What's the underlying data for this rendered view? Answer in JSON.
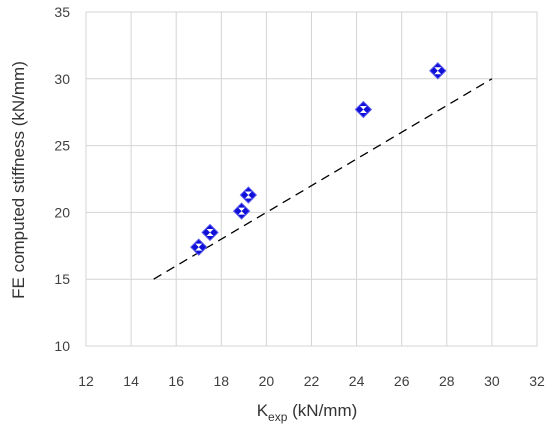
{
  "chart_data": {
    "type": "scatter",
    "title": "",
    "xlabel": {
      "base": "K",
      "subscript": "exp",
      "suffix": " (kN/mm)"
    },
    "ylabel": "FE computed stiffness (kN/mm)",
    "xlim": [
      12,
      32
    ],
    "ylim": [
      10,
      35
    ],
    "xticks": [
      "12",
      "14",
      "16",
      "18",
      "20",
      "22",
      "24",
      "26",
      "28",
      "30",
      "32"
    ],
    "yticks": [
      "10",
      "15",
      "20",
      "25",
      "30",
      "35"
    ],
    "grid": true,
    "legend": "none",
    "points": [
      {
        "x": 17.0,
        "y": 17.4
      },
      {
        "x": 17.5,
        "y": 18.5
      },
      {
        "x": 18.9,
        "y": 20.1
      },
      {
        "x": 19.2,
        "y": 21.3
      },
      {
        "x": 24.3,
        "y": 27.7
      },
      {
        "x": 27.6,
        "y": 30.6
      }
    ],
    "reference_line": {
      "x": [
        15,
        30
      ],
      "y": [
        15,
        30
      ],
      "style": "dashed"
    },
    "colors": {
      "marker": "#1010d8",
      "grid": "#d4d4d4",
      "line": "#000000"
    }
  }
}
